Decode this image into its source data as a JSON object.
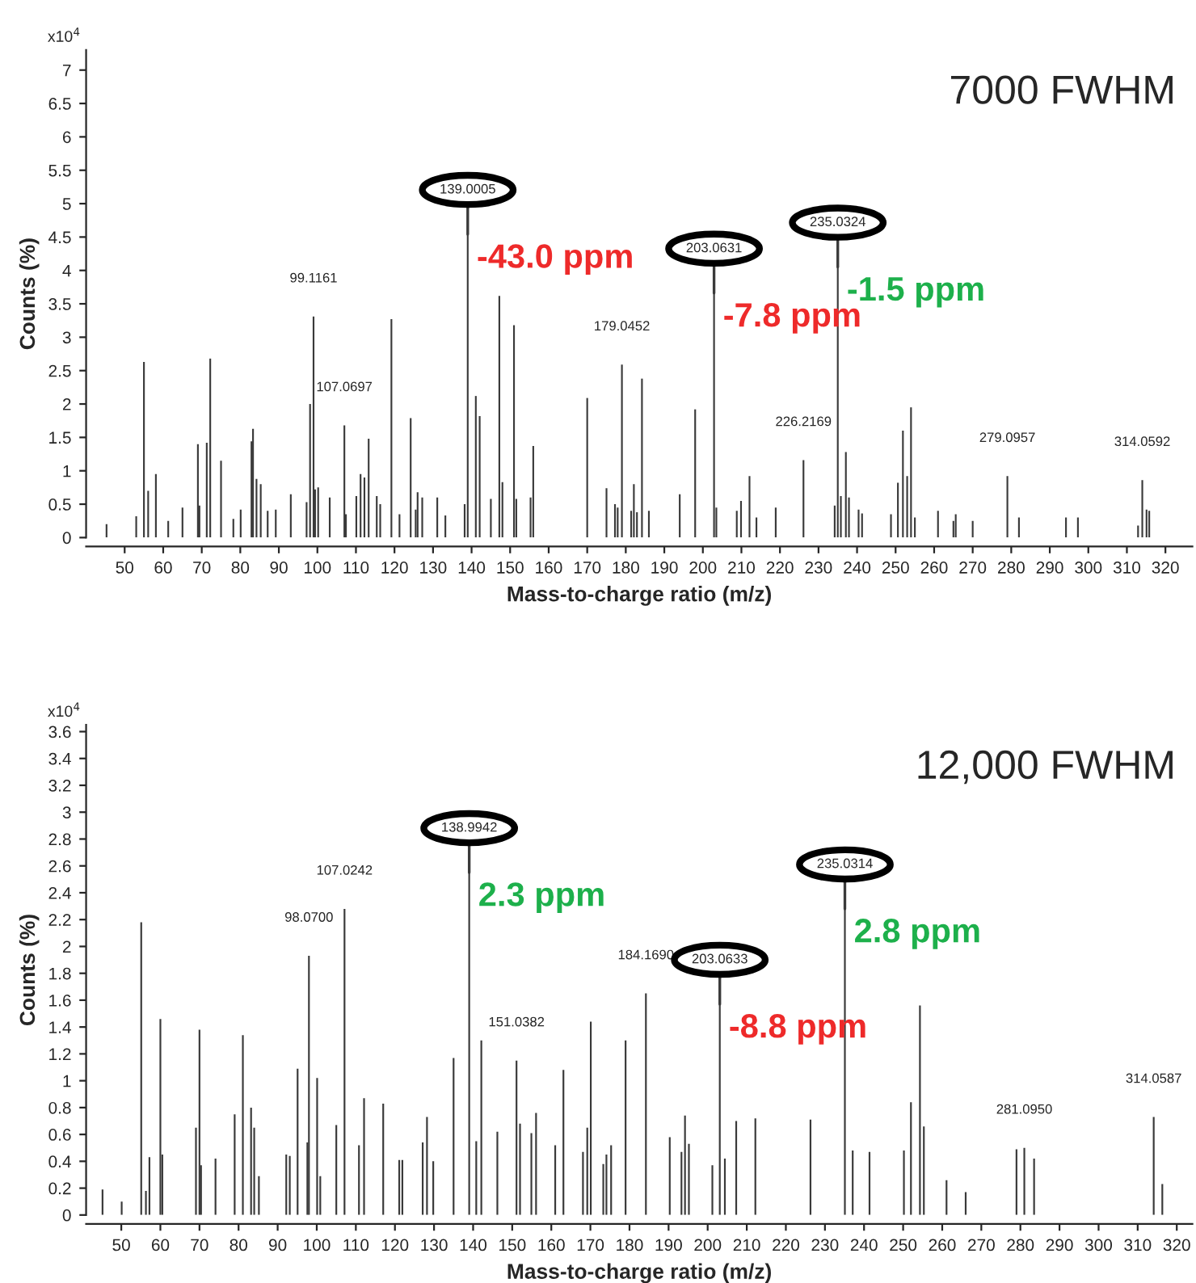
{
  "chart_data": [
    {
      "type": "bar",
      "title": "7000 FWHM",
      "xlabel": "Mass-to-charge ratio (m/z)",
      "ylabel": "Counts (%)",
      "x": [
        45.3,
        53,
        55.0,
        56.1,
        58.1,
        61.3,
        65,
        69.0,
        69.4,
        71.3,
        72.2,
        75,
        78.2,
        80.1,
        82.9,
        83.3,
        84.2,
        85.3,
        87.1,
        89.2,
        93.1,
        97.2,
        98.1,
        99.0,
        99.4,
        100.2,
        103.2,
        107.0,
        107.4,
        110.1,
        111.2,
        112.2,
        113.3,
        115.4,
        116.3,
        119.2,
        121.3,
        124.2,
        125.5,
        126.0,
        127.2,
        131.1,
        133.2,
        138.2,
        139.0,
        141.1,
        142.1,
        145.0,
        147.2,
        148.0,
        151.0,
        151.6,
        155.3,
        156.0,
        170.0,
        175.0,
        177.2,
        177.9,
        179.0,
        181.4,
        182.1,
        182.9,
        184.2,
        186,
        194,
        198.0,
        202.9,
        203.5,
        208.8,
        209.9,
        212.1,
        213.9,
        218.9,
        226.1,
        234.2,
        235.0,
        235.8,
        237.1,
        237.9,
        240.4,
        241.3,
        248.8,
        250.6,
        251.9,
        253.0,
        254.0,
        255,
        261,
        265,
        265.6,
        270.0,
        279.0,
        282,
        294.2,
        297.3,
        312.9,
        314.0,
        315.1,
        315.8
      ],
      "series": [
        {
          "color": "#3a3a3a",
          "values": [
            0.2,
            0.32,
            2.63,
            0.7,
            0.95,
            0.25,
            0.45,
            1.4,
            0.48,
            1.42,
            2.68,
            1.15,
            0.28,
            0.42,
            1.44,
            1.63,
            0.88,
            0.8,
            0.4,
            0.42,
            0.65,
            0.53,
            2.0,
            3.31,
            0.72,
            0.75,
            0.6,
            1.68,
            0.35,
            0.62,
            0.95,
            0.9,
            1.48,
            0.62,
            0.5,
            3.27,
            0.35,
            1.79,
            0.42,
            0.68,
            0.6,
            0.6,
            0.33,
            0.5,
            4.54,
            2.12,
            1.82,
            0.58,
            3.62,
            0.83,
            3.18,
            0.58,
            0.6,
            1.37,
            2.09,
            0.74,
            0.5,
            0.45,
            2.59,
            0.4,
            0.8,
            0.38,
            2.38,
            0.4,
            0.65,
            1.92,
            3.66,
            0.45,
            0.4,
            0.55,
            0.92,
            0.3,
            0.45,
            1.16,
            0.48,
            4.05,
            0.62,
            1.28,
            0.6,
            0.42,
            0.36,
            0.35,
            0.82,
            1.6,
            0.92,
            1.95,
            0.3,
            0.4,
            0.25,
            0.35,
            0.25,
            0.92,
            0.3,
            0.3,
            0.3,
            0.18,
            0.86,
            0.42,
            0.4
          ]
        }
      ],
      "xlim": [
        40,
        327
      ],
      "xticks": [
        50,
        60,
        70,
        80,
        90,
        100,
        110,
        120,
        130,
        140,
        150,
        160,
        170,
        180,
        190,
        200,
        210,
        220,
        230,
        240,
        250,
        260,
        270,
        280,
        290,
        300,
        310,
        320
      ],
      "ylim": [
        0,
        7.3
      ],
      "yticks": [
        0,
        0.5,
        1,
        1.5,
        2,
        2.5,
        3,
        3.5,
        4,
        4.5,
        5,
        5.5,
        6,
        6.5,
        7
      ],
      "grid": false,
      "legend": false,
      "annotations": [
        "x10$^{4}$",
        {
          "text": "99.1161",
          "x": 99.0,
          "y": 3.31
        },
        {
          "text": "107.0697",
          "x": 107.0,
          "y": 1.68
        },
        {
          "text": "139.0005",
          "x": 139.0,
          "y": 4.54
        },
        {
          "text": "-43.0 ppm",
          "x": 139.0,
          "y": 4.54
        },
        {
          "text": "179.0452",
          "x": 179.0,
          "y": 2.59
        },
        {
          "text": "203.0631",
          "x": 202.9,
          "y": 3.66
        },
        {
          "text": "-7.8 ppm",
          "x": 202.9,
          "y": 3.66
        },
        {
          "text": "226.2169",
          "x": 226.1,
          "y": 1.16
        },
        {
          "text": "235.0324",
          "x": 235.0,
          "y": 4.05
        },
        {
          "text": "-1.5 ppm",
          "x": 235.0,
          "y": 4.05
        },
        {
          "text": "279.0957",
          "x": 279.0,
          "y": 0.92
        },
        {
          "text": "314.0592",
          "x": 314.0,
          "y": 0.86
        }
      ]
    },
    {
      "type": "bar",
      "title": "12,000 FWHM",
      "xlabel": "Mass-to-charge ratio (m/z)",
      "ylabel": "Counts (%)",
      "x": [
        45.2,
        50.1,
        55.1,
        56.3,
        57.2,
        60.0,
        60.5,
        69.1,
        70.0,
        70.4,
        74.1,
        79.0,
        81.1,
        83.2,
        84.0,
        85.2,
        92.2,
        93.1,
        95.1,
        97.6,
        98.0,
        100.1,
        100.9,
        105.0,
        107.1,
        110.8,
        112.1,
        117.0,
        121.1,
        121.9,
        127.1,
        128.2,
        129.8,
        135.0,
        139.0,
        140.8,
        142.1,
        146.2,
        151.1,
        152.0,
        154.9,
        156.1,
        161.0,
        163.1,
        168.1,
        169.2,
        170.1,
        173.3,
        174.1,
        175.3,
        179.0,
        184.2,
        190.3,
        193.3,
        194.2,
        195.2,
        201.2,
        203.1,
        204.4,
        207.3,
        212.2,
        226.3,
        235.1,
        237.1,
        241.4,
        250.2,
        252.0,
        254.3,
        255.3,
        261.1,
        266.0,
        279.0,
        281.0,
        283.5,
        314.1,
        316.3
      ],
      "series": [
        {
          "color": "#3a3a3a",
          "values": [
            0.19,
            0.1,
            2.18,
            0.18,
            0.43,
            1.46,
            0.45,
            0.65,
            1.38,
            0.37,
            0.42,
            0.75,
            1.34,
            0.8,
            0.65,
            0.29,
            0.45,
            0.44,
            1.09,
            0.54,
            1.93,
            1.02,
            0.29,
            0.67,
            2.28,
            0.52,
            0.87,
            0.83,
            0.41,
            0.41,
            0.54,
            0.73,
            0.4,
            1.17,
            2.55,
            0.55,
            1.3,
            0.62,
            1.15,
            0.68,
            0.61,
            0.76,
            0.52,
            1.08,
            0.47,
            0.65,
            1.44,
            0.38,
            0.45,
            0.52,
            1.3,
            1.65,
            0.58,
            0.47,
            0.74,
            0.53,
            0.37,
            1.57,
            0.42,
            0.7,
            0.72,
            0.71,
            2.28,
            0.48,
            0.47,
            0.48,
            0.84,
            1.56,
            0.66,
            0.26,
            0.17,
            0.49,
            0.5,
            0.42,
            0.73,
            0.23
          ]
        }
      ],
      "xlim": [
        41,
        324
      ],
      "xticks": [
        50,
        60,
        70,
        80,
        90,
        100,
        110,
        120,
        130,
        140,
        150,
        160,
        170,
        180,
        190,
        200,
        210,
        220,
        230,
        240,
        250,
        260,
        270,
        280,
        290,
        300,
        310,
        320
      ],
      "ylim": [
        0,
        3.65
      ],
      "yticks": [
        0,
        0.2,
        0.4,
        0.6,
        0.8,
        1,
        1.2,
        1.4,
        1.6,
        1.8,
        2,
        2.2,
        2.4,
        2.6,
        2.8,
        3,
        3.2,
        3.4,
        3.6
      ],
      "grid": false,
      "legend": false,
      "annotations": [
        "x10$^{4}$",
        {
          "text": "98.0700",
          "x": 98.0,
          "y": 1.93
        },
        {
          "text": "107.0242",
          "x": 107.1,
          "y": 2.28
        },
        {
          "text": "138.9942",
          "x": 139.0,
          "y": 2.55
        },
        {
          "text": "2.3 ppm",
          "x": 139.0,
          "y": 2.55
        },
        {
          "text": "151.0382",
          "x": 151.1,
          "y": 1.15
        },
        {
          "text": "184.1690",
          "x": 184.2,
          "y": 1.65
        },
        {
          "text": "203.0633",
          "x": 203.1,
          "y": 1.57
        },
        {
          "text": "-8.8 ppm",
          "x": 203.1,
          "y": 1.57
        },
        {
          "text": "235.0314",
          "x": 235.1,
          "y": 2.28
        },
        {
          "text": "2.8 ppm",
          "x": 235.1,
          "y": 2.28
        },
        {
          "text": "281.0950",
          "x": 281.0,
          "y": 0.5
        },
        {
          "text": "314.0587",
          "x": 314.1,
          "y": 0.73
        }
      ]
    }
  ]
}
